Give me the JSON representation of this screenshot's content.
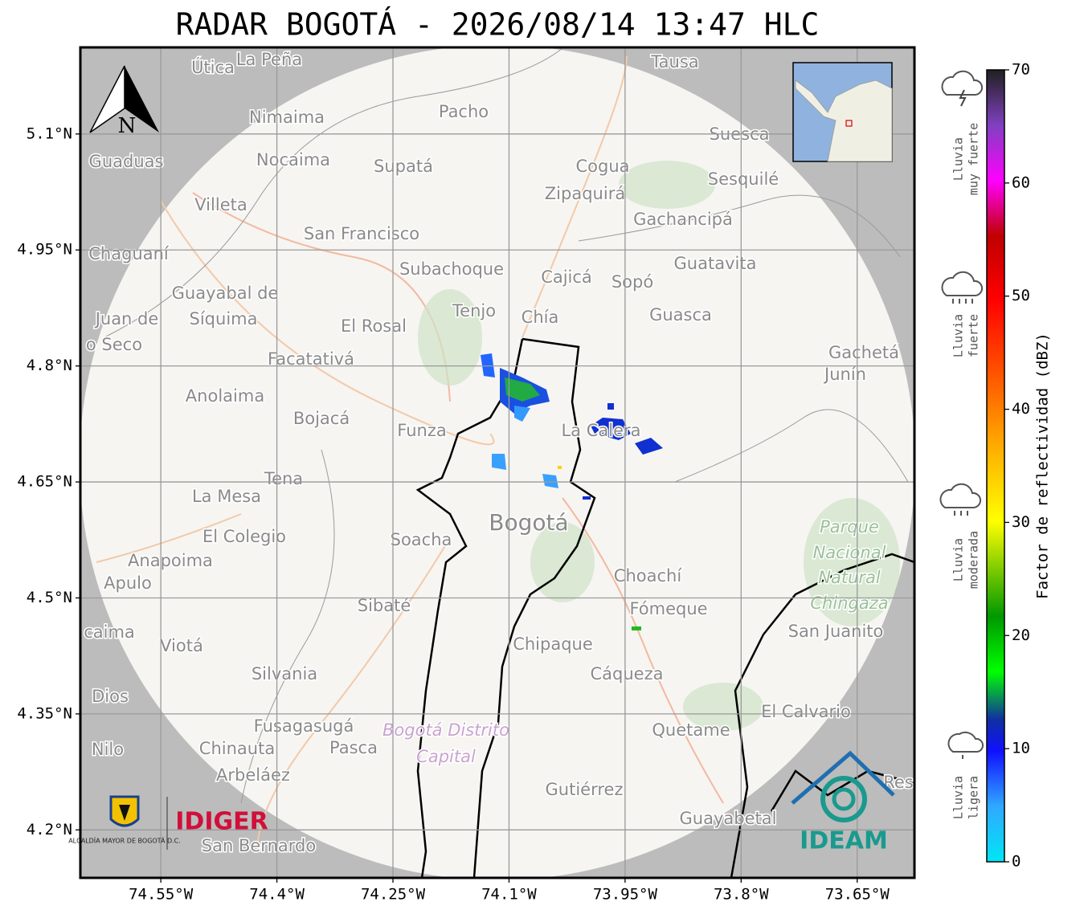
{
  "title": "RADAR BOGOTÁ - 2026/08/14 13:47 HLC",
  "map": {
    "lon_range": [
      -74.654,
      -73.576
    ],
    "lat_range": [
      4.138,
      5.212
    ],
    "lon_ticks": [
      {
        "value": -74.55,
        "label": "74.55°W"
      },
      {
        "value": -74.4,
        "label": "74.4°W"
      },
      {
        "value": -74.25,
        "label": "74.25°W"
      },
      {
        "value": -74.1,
        "label": "74.1°W"
      },
      {
        "value": -73.95,
        "label": "73.95°W"
      },
      {
        "value": -73.8,
        "label": "73.8°W"
      },
      {
        "value": -73.65,
        "label": "73.65°W"
      }
    ],
    "lat_ticks": [
      {
        "value": 5.1,
        "label": "5.1°N"
      },
      {
        "value": 4.95,
        "label": "4.95°N"
      },
      {
        "value": 4.8,
        "label": "4.8°N"
      },
      {
        "value": 4.65,
        "label": "4.65°N"
      },
      {
        "value": 4.5,
        "label": "4.5°N"
      },
      {
        "value": 4.35,
        "label": "4.35°N"
      },
      {
        "value": 4.2,
        "label": "4.2°N"
      }
    ],
    "north_label": "N",
    "places": [
      "Útica",
      "La Peña",
      "Tausa",
      "Pacho",
      "Nimaima",
      "Suesca",
      "Guaduas",
      "Nocaima",
      "Supatá",
      "Cogua",
      "Sesquilé",
      "Zipaquirá",
      "Villeta",
      "Gachancipá",
      "San Francisco",
      "Chaguaní",
      "Guatavita",
      "Subachoque",
      "Cajicá",
      "Sopó",
      "Guayabal de",
      "Tenjo",
      "Chía",
      "Guasca",
      "Juan de",
      "Síquima",
      "El Rosal",
      "o Seco",
      "Gachetá",
      "Facatativá",
      "Junín",
      "Anolaima",
      "Bojacá",
      "Funza",
      "La Calera",
      "Tena",
      "La Mesa",
      "Bogotá",
      "Parque",
      "Soacha",
      "El Colegio",
      "Nacional",
      "Anapoima",
      "Choachí",
      "Natural",
      "Apulo",
      "Chingaza",
      "Sibaté",
      "Fómeque",
      "San Juanito",
      "caima",
      "Viotá",
      "Chipaque",
      "Silvania",
      "Cáqueza",
      "Dios",
      "El Calvario",
      "Fusagasugá",
      "Bogotá Distrito",
      "Quetame",
      "Nilo",
      "Chinauta",
      "Pasca",
      "Capital",
      "Arbeláez",
      "Gutiérrez",
      "Guayabetal",
      "San Bernardo",
      "Res"
    ]
  },
  "logos": {
    "alcaldia": "ALCALDÍA MAYOR DE BOGOTÁ D.C.",
    "idiger": "IDIGER",
    "ideam": "IDEAM"
  },
  "colorbar": {
    "label": "Factor de reflectividad (dBZ)",
    "range": [
      0,
      70
    ],
    "ticks": [
      0,
      10,
      20,
      30,
      40,
      50,
      60,
      70
    ]
  },
  "rain_legend": [
    [
      "Lluvia",
      "muy fuerte"
    ],
    [
      "Lluvia",
      "fuerte"
    ],
    [
      "Lluvia",
      "moderada"
    ],
    [
      "Lluvia",
      "ligera"
    ]
  ]
}
